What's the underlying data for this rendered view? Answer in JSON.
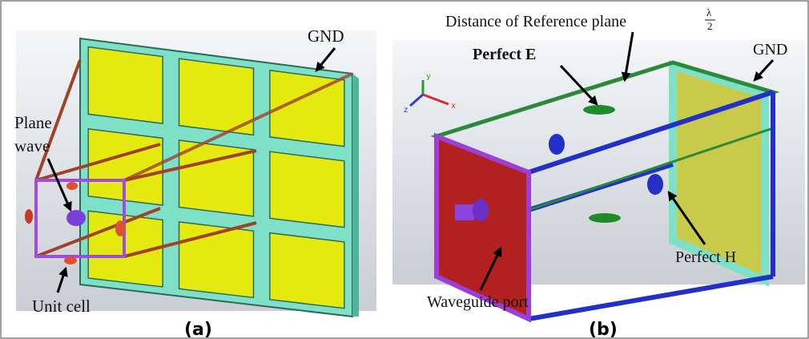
{
  "panels": [
    {
      "caption": "(a)",
      "labels": {
        "gnd": "GND",
        "plane_wave": [
          "Plane",
          "wave"
        ],
        "unit_cell": "Unit cell"
      }
    },
    {
      "caption": "(b)",
      "labels": {
        "distance": "Distance of Reference plane",
        "lambda_num": "λ",
        "lambda_den": "2",
        "perfect_e": "Perfect E",
        "gnd": "GND",
        "perfect_h": "Perfect H",
        "waveguide_port": "Waveguide port",
        "axes": [
          "y",
          "z",
          "x"
        ]
      }
    }
  ]
}
